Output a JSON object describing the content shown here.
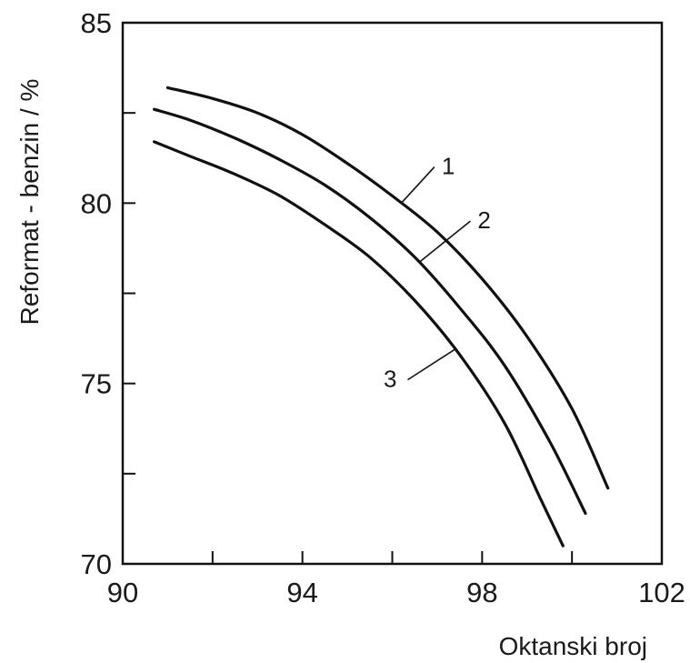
{
  "chart_data": {
    "type": "line",
    "title": "",
    "xlabel": "Oktanski broj",
    "ylabel": "Reformat - benzin / %",
    "xlim": [
      90,
      102
    ],
    "ylim": [
      70,
      85
    ],
    "x_ticks": [
      90,
      94,
      98,
      102
    ],
    "x_tick_labels": [
      "90",
      "94",
      "98",
      "102"
    ],
    "x_minor_ticks": [
      92,
      96,
      100
    ],
    "y_ticks": [
      70,
      75,
      80,
      85
    ],
    "y_tick_labels": [
      "70",
      "75",
      "80",
      "85"
    ],
    "y_minor_ticks": [
      72.5,
      77.5,
      82.5
    ],
    "grid": false,
    "series": [
      {
        "name": "1",
        "x": [
          91.0,
          92.0,
          93.0,
          94.0,
          95.0,
          96.0,
          97.0,
          98.0,
          99.0,
          100.0,
          100.8
        ],
        "y": [
          83.2,
          82.9,
          82.5,
          81.9,
          81.1,
          80.2,
          79.2,
          77.9,
          76.3,
          74.3,
          72.1
        ]
      },
      {
        "name": "2",
        "x": [
          90.7,
          91.5,
          92.5,
          93.5,
          94.5,
          95.5,
          96.5,
          97.5,
          98.5,
          99.5,
          100.3
        ],
        "y": [
          82.6,
          82.3,
          81.8,
          81.2,
          80.5,
          79.6,
          78.5,
          77.1,
          75.5,
          73.4,
          71.4
        ]
      },
      {
        "name": "3",
        "x": [
          90.7,
          91.5,
          92.5,
          93.5,
          94.5,
          95.5,
          96.5,
          97.5,
          98.5,
          99.3,
          99.8
        ],
        "y": [
          81.7,
          81.3,
          80.8,
          80.2,
          79.4,
          78.5,
          77.3,
          75.8,
          73.9,
          71.8,
          70.5
        ]
      }
    ],
    "annotations": [
      {
        "text": "1",
        "series": "1",
        "at_x": 96.2,
        "label_x": 97.1,
        "label_y": 80.8
      },
      {
        "text": "2",
        "series": "2",
        "at_x": 96.6,
        "label_x": 97.9,
        "label_y": 79.3
      },
      {
        "text": "3",
        "series": "3",
        "at_x": 97.4,
        "label_x": 96.1,
        "label_y": 74.9
      }
    ]
  }
}
